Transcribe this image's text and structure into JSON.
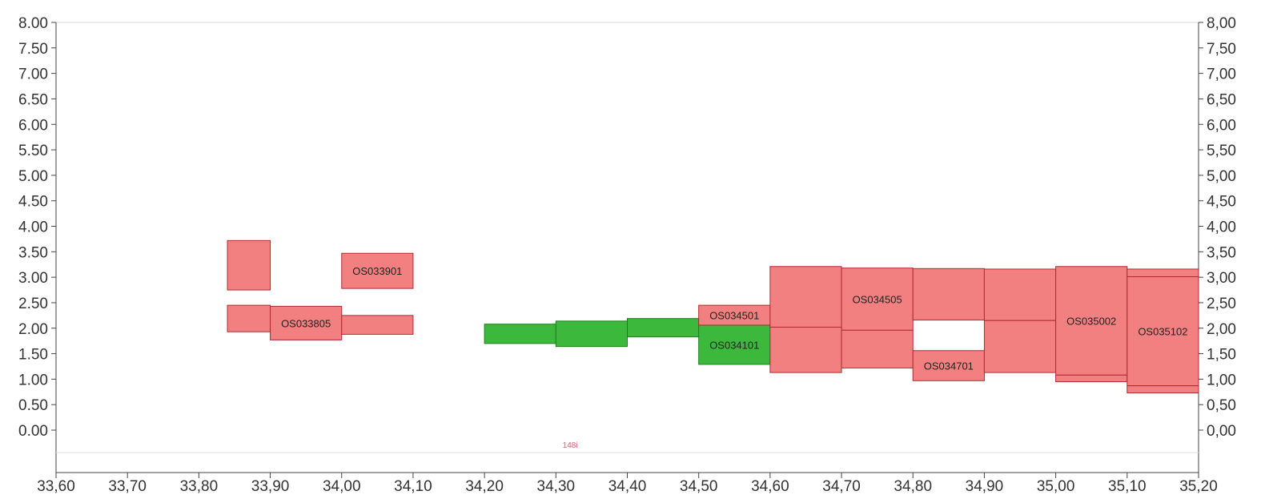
{
  "chart_data": {
    "type": "bar",
    "chart_kind": "floating range blocks",
    "xlim": [
      33.6,
      35.2
    ],
    "ylim": [
      0.0,
      8.0
    ],
    "x_ticks": [
      "33,60",
      "33,70",
      "33,80",
      "33,90",
      "34,00",
      "34,10",
      "34,20",
      "34,30",
      "34,40",
      "34,50",
      "34,60",
      "34,70",
      "34,80",
      "34,90",
      "35,00",
      "35,10",
      "35,20"
    ],
    "x_tick_values": [
      33.6,
      33.7,
      33.8,
      33.9,
      34.0,
      34.1,
      34.2,
      34.3,
      34.4,
      34.5,
      34.6,
      34.7,
      34.8,
      34.9,
      35.0,
      35.1,
      35.2
    ],
    "y_ticks_left": [
      "0.00",
      "0.50",
      "1.00",
      "1.50",
      "2.00",
      "2.50",
      "3.00",
      "3.50",
      "4.00",
      "4.50",
      "5.00",
      "5.50",
      "6.00",
      "6.50",
      "7.00",
      "7.50",
      "8.00"
    ],
    "y_ticks_right": [
      "0,00",
      "0,50",
      "1,00",
      "1,50",
      "2,00",
      "2,50",
      "3,00",
      "3,50",
      "4,00",
      "4,50",
      "5,00",
      "5,50",
      "6,00",
      "6,50",
      "7,00",
      "7,50",
      "8,00"
    ],
    "y_tick_values": [
      0,
      0.5,
      1,
      1.5,
      2,
      2.5,
      3,
      3.5,
      4,
      4.5,
      5,
      5.5,
      6,
      6.5,
      7,
      7.5,
      8
    ],
    "grid": false,
    "reference_marker": {
      "label": "148i",
      "x": 34.32,
      "color": "#e06070"
    },
    "colors": {
      "red_fill": "#f28080",
      "red_edge": "#b02a30",
      "green_fill": "#3cb83c",
      "green_edge": "#1e7e1e",
      "axis": "#444444"
    },
    "blocks": [
      {
        "label": "",
        "color": "red",
        "x0": 33.84,
        "x1": 33.9,
        "y0": 2.75,
        "y1": 3.72
      },
      {
        "label": "OS033901",
        "color": "red",
        "x0": 34.0,
        "x1": 34.1,
        "y0": 2.78,
        "y1": 3.47
      },
      {
        "label": "",
        "color": "red",
        "x0": 33.84,
        "x1": 33.9,
        "y0": 1.93,
        "y1": 2.45
      },
      {
        "label": "OS033805",
        "color": "red",
        "x0": 33.9,
        "x1": 34.0,
        "y0": 1.77,
        "y1": 2.43
      },
      {
        "label": "",
        "color": "red",
        "x0": 34.0,
        "x1": 34.1,
        "y0": 1.88,
        "y1": 2.25
      },
      {
        "label": "",
        "color": "green",
        "x0": 34.2,
        "x1": 34.3,
        "y0": 1.7,
        "y1": 2.08
      },
      {
        "label": "",
        "color": "green",
        "x0": 34.3,
        "x1": 34.4,
        "y0": 1.64,
        "y1": 2.14
      },
      {
        "label": "",
        "color": "green",
        "x0": 34.4,
        "x1": 34.5,
        "y0": 1.83,
        "y1": 2.19
      },
      {
        "label": "OS034101",
        "color": "green",
        "x0": 34.5,
        "x1": 34.6,
        "y0": 1.29,
        "y1": 2.06
      },
      {
        "label": "OS034501",
        "color": "red",
        "x0": 34.5,
        "x1": 34.6,
        "y0": 2.06,
        "y1": 2.45
      },
      {
        "label": "",
        "color": "red",
        "x0": 34.6,
        "x1": 34.7,
        "y0": 2.02,
        "y1": 3.21
      },
      {
        "label": "OS034505",
        "color": "red",
        "x0": 34.7,
        "x1": 34.8,
        "y0": 1.96,
        "y1": 3.18
      },
      {
        "label": "",
        "color": "red",
        "x0": 34.8,
        "x1": 34.9,
        "y0": 2.16,
        "y1": 3.17
      },
      {
        "label": "",
        "color": "red",
        "x0": 34.9,
        "x1": 35.0,
        "y0": 2.15,
        "y1": 3.16
      },
      {
        "label": "",
        "color": "red",
        "x0": 34.6,
        "x1": 34.7,
        "y0": 1.13,
        "y1": 2.02
      },
      {
        "label": "",
        "color": "red",
        "x0": 34.7,
        "x1": 34.8,
        "y0": 1.22,
        "y1": 1.96
      },
      {
        "label": "OS034701",
        "color": "red",
        "x0": 34.8,
        "x1": 34.9,
        "y0": 0.97,
        "y1": 1.56
      },
      {
        "label": "",
        "color": "red",
        "x0": 34.9,
        "x1": 35.0,
        "y0": 1.13,
        "y1": 2.15
      },
      {
        "label": "OS035002",
        "color": "red",
        "x0": 35.0,
        "x1": 35.1,
        "y0": 1.08,
        "y1": 3.21
      },
      {
        "label": "",
        "color": "red",
        "x0": 35.0,
        "x1": 35.1,
        "y0": 0.95,
        "y1": 1.08
      },
      {
        "label": "OS035102",
        "color": "red",
        "x0": 35.1,
        "x1": 35.2,
        "y0": 0.87,
        "y1": 3.01
      },
      {
        "label": "",
        "color": "red",
        "x0": 35.1,
        "x1": 35.2,
        "y0": 3.01,
        "y1": 3.16
      },
      {
        "label": "",
        "color": "red",
        "x0": 35.1,
        "x1": 35.2,
        "y0": 0.73,
        "y1": 0.87
      }
    ]
  }
}
